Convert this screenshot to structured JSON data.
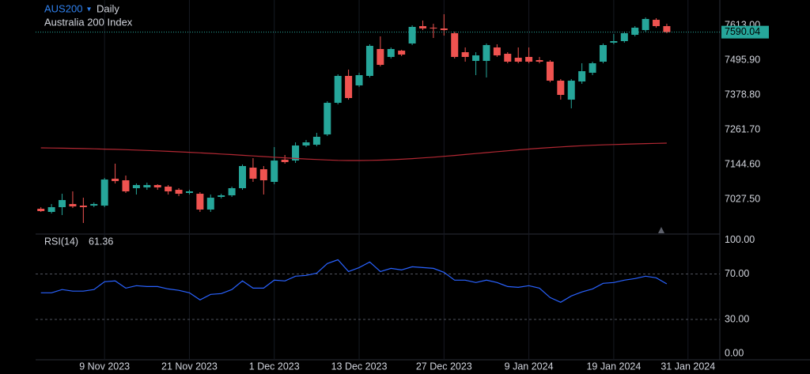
{
  "chart_data": [
    {
      "type": "candlestick",
      "title": "AUS200",
      "interval": "Daily",
      "subtitle": "Australia 200 Index",
      "up_color": "#26a69a",
      "down_color": "#ef5350",
      "grid": true,
      "open": [
        6995.6,
        6984.9,
        7000.9,
        7011.5,
        7006.2,
        7006.2,
        7006.2,
        7096.7,
        7091.4,
        7064.8,
        7067.4,
        7075.4,
        7070.1,
        7059.4,
        7048.8,
        7046.1,
        6992.9,
        7035.5,
        7040.8,
        7064.8,
        7134.0,
        7128.6,
        7086.1,
        7160.6,
        7157.9,
        7208.5,
        7211.1,
        7245.7,
        7352.2,
        7442.7,
        7410.7,
        7442.7,
        7533.2,
        7506.6,
        7527.8,
        7551.8,
        7610.3,
        7605.0,
        7602.4,
        7586.4,
        7522.5,
        7493.2,
        7493.2,
        7538.5,
        7517.2,
        7503.9,
        7506.6,
        7495.9,
        7490.6,
        7426.7,
        7362.8,
        7424.0,
        7453.3,
        7490.6,
        7554.5,
        7559.8,
        7581.1,
        7597.0,
        7631.6,
        7610.3
      ],
      "high": [
        7000.9,
        7011.5,
        7046.1,
        7054.1,
        7032.8,
        7016.9,
        7099.4,
        7147.3,
        7107.3,
        7080.7,
        7083.4,
        7078.1,
        7075.4,
        7064.8,
        7059.4,
        7051.5,
        7043.5,
        7046.1,
        7070.1,
        7144.6,
        7165.9,
        7139.3,
        7203.2,
        7176.5,
        7219.1,
        7227.1,
        7251.1,
        7357.5,
        7448.0,
        7464.0,
        7453.3,
        7549.1,
        7575.7,
        7538.5,
        7530.5,
        7613.0,
        7629.0,
        7618.3,
        7650.3,
        7591.7,
        7538.5,
        7522.5,
        7551.8,
        7549.1,
        7522.5,
        7538.5,
        7538.5,
        7506.6,
        7495.9,
        7432.0,
        7432.0,
        7485.3,
        7490.6,
        7551.8,
        7583.7,
        7591.7,
        7610.3,
        7639.6,
        7637.0,
        7618.3
      ],
      "low": [
        6984.9,
        6979.6,
        6974.3,
        6998.2,
        6947.7,
        7000.9,
        7000.9,
        7080.7,
        7048.8,
        7043.5,
        7059.4,
        7059.4,
        7043.5,
        7038.1,
        7043.5,
        6984.9,
        6984.9,
        7030.2,
        7035.5,
        7059.4,
        7086.1,
        7043.5,
        7078.1,
        7147.3,
        7149.9,
        7203.2,
        7205.8,
        7240.4,
        7346.9,
        7362.8,
        7405.4,
        7437.4,
        7474.6,
        7501.2,
        7509.2,
        7546.5,
        7597.0,
        7570.4,
        7578.4,
        7501.2,
        7490.6,
        7445.3,
        7437.4,
        7506.6,
        7485.3,
        7485.3,
        7485.3,
        7485.3,
        7421.4,
        7362.8,
        7333.6,
        7416.1,
        7445.3,
        7485.3,
        7549.1,
        7554.5,
        7575.7,
        7591.7,
        7605.0,
        7586.4
      ],
      "close": [
        6987.6,
        7000.9,
        7024.8,
        7003.5,
        7000.9,
        7011.5,
        7094.0,
        7088.7,
        7054.1,
        7075.4,
        7075.4,
        7067.4,
        7054.1,
        7046.1,
        7054.1,
        6992.9,
        7032.8,
        7040.8,
        7064.8,
        7139.3,
        7096.7,
        7091.4,
        7157.9,
        7152.6,
        7208.5,
        7219.1,
        7237.8,
        7352.2,
        7442.7,
        7368.2,
        7445.3,
        7543.8,
        7479.9,
        7533.2,
        7514.5,
        7607.7,
        7602.4,
        7602.4,
        7597.0,
        7506.6,
        7506.6,
        7511.8,
        7546.5,
        7511.8,
        7490.6,
        7490.6,
        7490.6,
        7490.6,
        7426.7,
        7378.8,
        7426.7,
        7458.6,
        7485.3,
        7546.5,
        7559.8,
        7586.4,
        7605.0,
        7634.3,
        7610.3,
        7590.04
      ],
      "ma": {
        "color": "#b22833",
        "values": [
          7200.5,
          7200.0,
          7199.4,
          7198.8,
          7198.1,
          7197.3,
          7196.4,
          7195.4,
          7194.3,
          7193.1,
          7191.8,
          7190.4,
          7188.9,
          7187.3,
          7185.6,
          7183.8,
          7181.9,
          7179.9,
          7177.8,
          7175.6,
          7173.4,
          7171.2,
          7169.0,
          7166.9,
          7164.9,
          7163.0,
          7161.3,
          7159.8,
          7158.6,
          7157.9,
          7157.9,
          7158.4,
          7159.3,
          7160.6,
          7162.3,
          7164.3,
          7166.6,
          7169.2,
          7172.0,
          7175.0,
          7178.1,
          7181.3,
          7184.5,
          7187.7,
          7190.8,
          7193.8,
          7196.6,
          7199.2,
          7201.6,
          7203.8,
          7205.8,
          7207.6,
          7209.2,
          7210.6,
          7211.8,
          7212.9,
          7213.9,
          7214.8,
          7215.7,
          7216.5
        ]
      },
      "xlim": [
        -0.5,
        64
      ],
      "xticks": [
        {
          "value": 6,
          "label": "9 Nov 2023"
        },
        {
          "value": 14,
          "label": "21 Nov 2023"
        },
        {
          "value": 22,
          "label": "1 Dec 2023"
        },
        {
          "value": 30,
          "label": "13 Dec 2023"
        },
        {
          "value": 38,
          "label": "27 Dec 2023"
        },
        {
          "value": 46,
          "label": "9 Jan 2024"
        },
        {
          "value": 54,
          "label": "19 Jan 2024"
        },
        {
          "value": 61,
          "label": "31 Jan 2024"
        }
      ],
      "ylim": [
        6913.1,
        7698.2
      ],
      "yticks": [
        {
          "value": 7613,
          "label": "7613.00"
        },
        {
          "value": 7495.9,
          "label": "7495.90"
        },
        {
          "value": 7378.8,
          "label": "7378.80"
        },
        {
          "value": 7261.7,
          "label": "7261.70"
        },
        {
          "value": 7144.6,
          "label": "7144.60"
        },
        {
          "value": 7027.5,
          "label": "7027.50"
        }
      ]
    },
    {
      "type": "line",
      "title": "RSI(14)",
      "color": "#2962ff",
      "values": [
        53.5,
        53.5,
        56.3,
        54.9,
        54.9,
        56.3,
        63.2,
        63.9,
        57.6,
        59.7,
        59.0,
        59.0,
        56.9,
        55.6,
        53.5,
        47.2,
        52.1,
        52.8,
        56.3,
        63.9,
        57.6,
        57.6,
        64.6,
        63.9,
        68.1,
        68.8,
        70.8,
        79.2,
        82.6,
        72.2,
        75.7,
        80.6,
        72.2,
        75.0,
        73.6,
        76.4,
        75.7,
        75.0,
        71.5,
        64.6,
        64.6,
        62.5,
        64.6,
        62.5,
        59.0,
        58.3,
        59.7,
        57.6,
        49.3,
        45.1,
        50.7,
        54.2,
        56.9,
        61.8,
        62.5,
        64.6,
        66.0,
        68.1,
        66.7,
        61.36
      ],
      "dashed_levels": [
        70,
        30
      ],
      "ylim": [
        -5.5,
        104.5
      ],
      "yticks": [
        {
          "value": 100,
          "label": "100.00"
        },
        {
          "value": 70,
          "label": "70.00"
        },
        {
          "value": 30,
          "label": "30.00"
        },
        {
          "value": 0,
          "label": "0.00"
        }
      ]
    }
  ]
}
